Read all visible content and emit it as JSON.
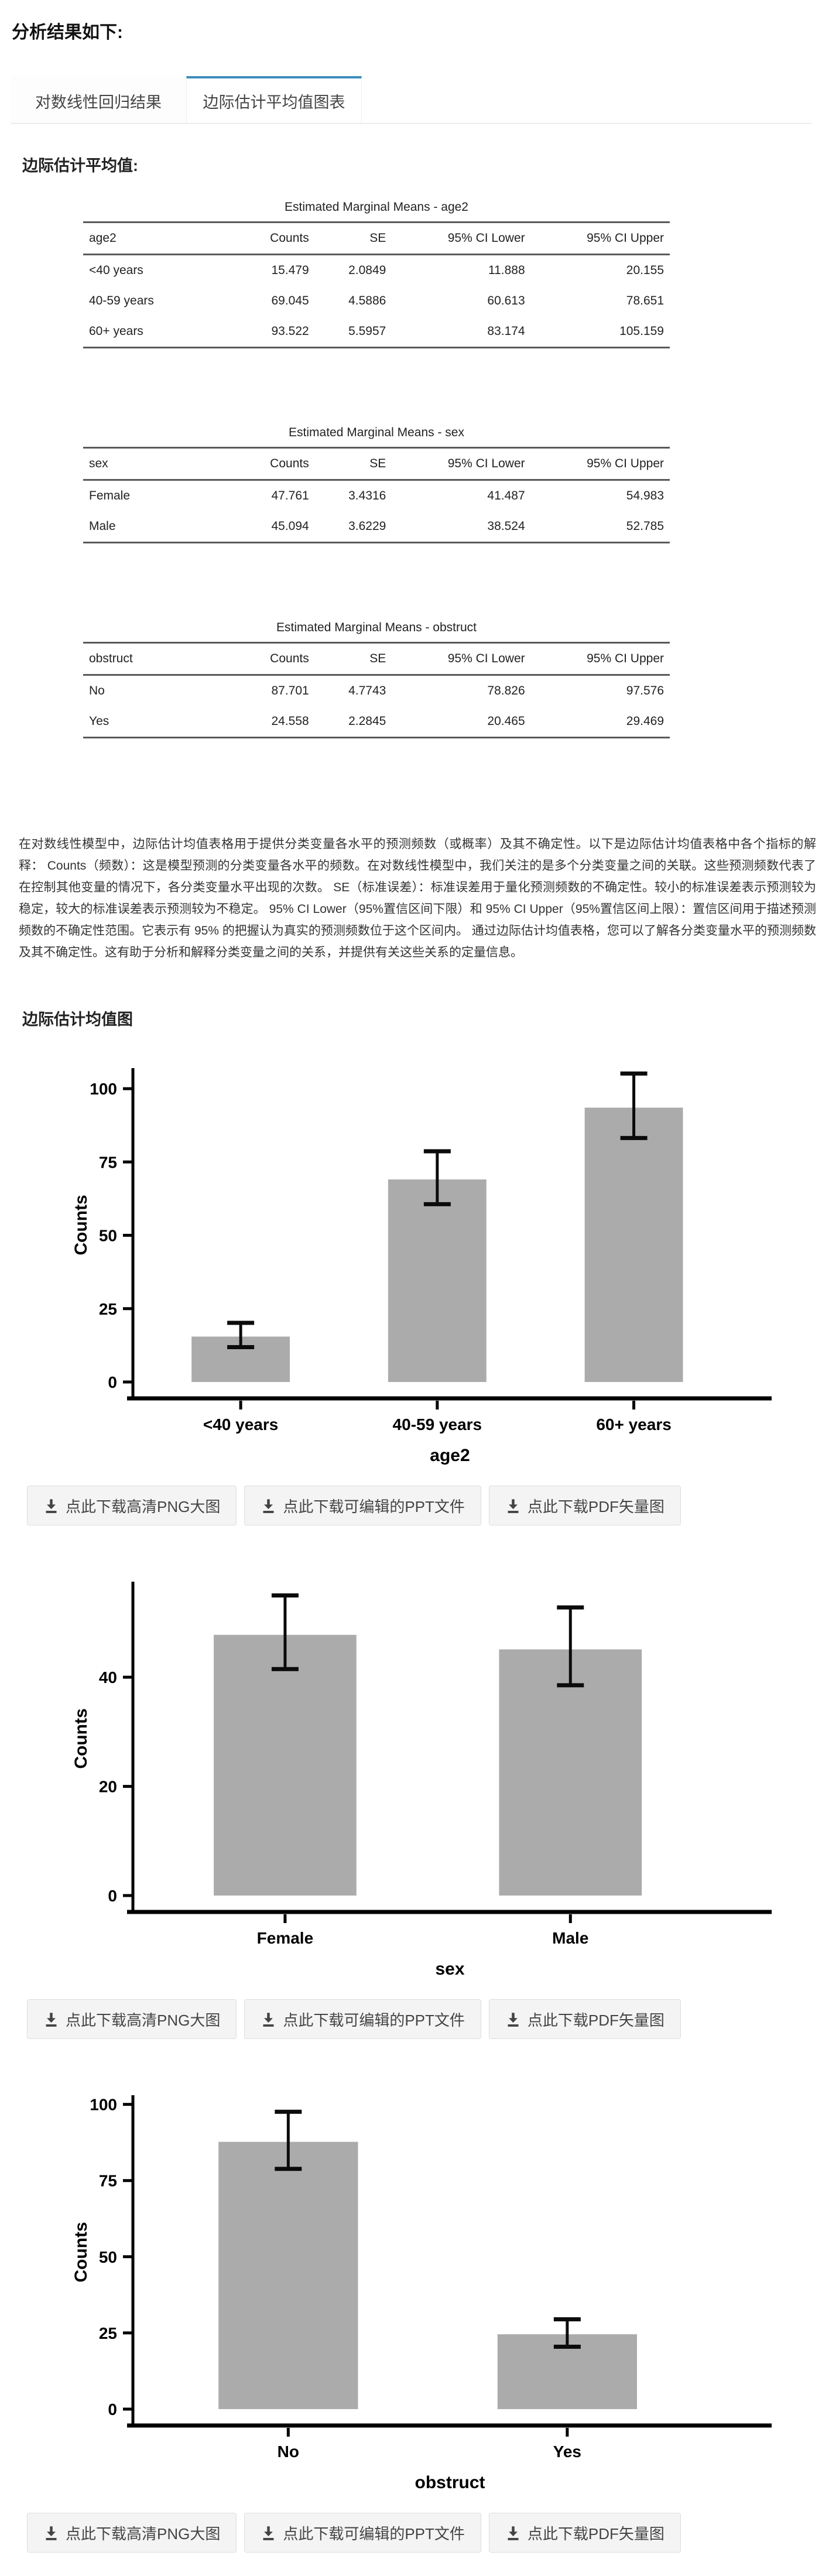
{
  "page": {
    "title": "分析结果如下:"
  },
  "tabs": [
    {
      "label": "对数线性回归结果",
      "active": false
    },
    {
      "label": "边际估计平均值图表",
      "active": true
    }
  ],
  "sections": {
    "emm_heading": "边际估计平均值:",
    "charts_heading": "边际估计均值图",
    "description": "在对数线性模型中，边际估计均值表格用于提供分类变量各水平的预测频数（或概率）及其不确定性。以下是边际估计均值表格中各个指标的解释： Counts（频数）：这是模型预测的分类变量各水平的频数。在对数线性模型中，我们关注的是多个分类变量之间的关联。这些预测频数代表了在控制其他变量的情况下，各分类变量水平出现的次数。 SE（标准误差）：标准误差用于量化预测频数的不确定性。较小的标准误差表示预测较为稳定，较大的标准误差表示预测较为不稳定。 95% CI Lower（95%置信区间下限）和 95% CI Upper（95%置信区间上限）：置信区间用于描述预测频数的不确定性范围。它表示有 95% 的把握认为真实的预测频数位于这个区间内。 通过边际估计均值表格，您可以了解各分类变量水平的预测频数及其不确定性。这有助于分析和解释分类变量之间的关系，并提供有关这些关系的定量信息。"
  },
  "tables": [
    {
      "id": "age2",
      "title": "Estimated Marginal Means - age2",
      "columns": [
        "age2",
        "Counts",
        "SE",
        "95% CI Lower",
        "95% CI Upper"
      ],
      "rows": [
        [
          "<40 years",
          "15.479",
          "2.0849",
          "11.888",
          "20.155"
        ],
        [
          "40-59 years",
          "69.045",
          "4.5886",
          "60.613",
          "78.651"
        ],
        [
          "60+ years",
          "93.522",
          "5.5957",
          "83.174",
          "105.159"
        ]
      ]
    },
    {
      "id": "sex",
      "title": "Estimated Marginal Means - sex",
      "columns": [
        "sex",
        "Counts",
        "SE",
        "95% CI Lower",
        "95% CI Upper"
      ],
      "rows": [
        [
          "Female",
          "47.761",
          "3.4316",
          "41.487",
          "54.983"
        ],
        [
          "Male",
          "45.094",
          "3.6229",
          "38.524",
          "52.785"
        ]
      ]
    },
    {
      "id": "obstruct",
      "title": "Estimated Marginal Means - obstruct",
      "columns": [
        "obstruct",
        "Counts",
        "SE",
        "95% CI Lower",
        "95% CI Upper"
      ],
      "rows": [
        [
          "No",
          "87.701",
          "4.7743",
          "78.826",
          "97.576"
        ],
        [
          "Yes",
          "24.558",
          "2.2845",
          "20.465",
          "29.469"
        ]
      ]
    }
  ],
  "download_buttons": [
    "点此下载高清PNG大图",
    "点此下载可编辑的PPT文件",
    "点此下载PDF矢量图"
  ],
  "colors": {
    "accent": "#3c8dbc",
    "bar": "#ababab",
    "axis": "#000000",
    "rule": "#595959",
    "button_bg": "#f4f4f4",
    "button_border": "#dddddd"
  },
  "chart_data": [
    {
      "type": "bar",
      "categories": [
        "<40 years",
        "40-59 years",
        "60+ years"
      ],
      "values": [
        15.479,
        69.045,
        93.522
      ],
      "ci_lower": [
        11.888,
        60.613,
        83.174
      ],
      "ci_upper": [
        20.155,
        78.651,
        105.159
      ],
      "xlabel": "age2",
      "ylabel": "Counts",
      "yticks": [
        0,
        25,
        50,
        75,
        100
      ],
      "ylim": [
        0,
        107
      ],
      "grid": false,
      "bar_color": "#ababab",
      "layout": {
        "bar_center_fracs": [
          0.17,
          0.48,
          0.79
        ],
        "bar_width_frac": 0.155
      }
    },
    {
      "type": "bar",
      "categories": [
        "Female",
        "Male"
      ],
      "values": [
        47.761,
        45.094
      ],
      "ci_lower": [
        41.487,
        38.524
      ],
      "ci_upper": [
        54.983,
        52.785
      ],
      "xlabel": "sex",
      "ylabel": "Counts",
      "yticks": [
        0,
        20,
        40
      ],
      "ylim": [
        0,
        57.5
      ],
      "grid": false,
      "bar_color": "#ababab",
      "layout": {
        "bar_center_fracs": [
          0.24,
          0.69
        ],
        "bar_width_frac": 0.225
      }
    },
    {
      "type": "bar",
      "categories": [
        "No",
        "Yes"
      ],
      "values": [
        87.701,
        24.558
      ],
      "ci_lower": [
        78.826,
        20.465
      ],
      "ci_upper": [
        97.576,
        29.469
      ],
      "xlabel": "obstruct",
      "ylabel": "Counts",
      "yticks": [
        0,
        25,
        50,
        75,
        100
      ],
      "ylim": [
        0,
        103
      ],
      "grid": false,
      "bar_color": "#ababab",
      "layout": {
        "bar_center_fracs": [
          0.245,
          0.685
        ],
        "bar_width_frac": 0.22
      }
    }
  ]
}
